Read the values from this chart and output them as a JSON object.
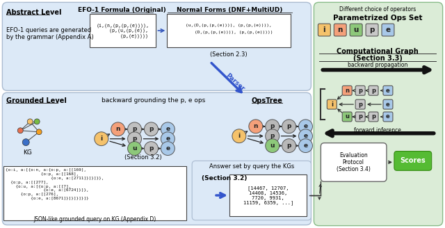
{
  "abstract_bg": "#dce9f7",
  "grounded_bg": "#dce9f7",
  "right_bg": "#dbecd7",
  "answer_bg": "#dce9f7",
  "abstract_label": "Abstract Level",
  "grounded_label": "Grounded Level",
  "efo1_title": "EFO-1 Formula (Original)",
  "efo1_text": "(i,(n,(p,(p,(e)))),\n   (p,(u,(p,(e)),\n       (p,(e)))))",
  "normal_title": "Normal Forms (DNF+MultiUD)",
  "normal_text": "(u,(D,(p,(p,(e)))), (p,(p,(e)))),\n    (D,(p,(p,(e)))), (p,(p,(e)))))",
  "section23": "(Section 2.3)",
  "section32": "(Section 3.2)",
  "grounding_text": "backward grounding the p, e ops",
  "opstree_label": "OpsTree",
  "kg_label": "KG",
  "param_ops_title": "Parametrized Ops Set",
  "back_prop_text": "backward propagation",
  "forward_inf_text": "forward inference",
  "answer_set_text": "Answer set by query the KGs",
  "answer_values": "[14467, 12707,\n14408, 14536,\n7720, 9931,\n11159, 6359, ...]",
  "eval_protocol_text": "Evaluation\nProtocol\n(Section 3.4)",
  "scores_text": "Scores",
  "json_label": "JSON-like grounded query on KG (Appendix D)",
  "diff_ops_text": "Different choice of operators",
  "appendix_a_text": "EFO-1 queries are generated\nby the grammar (Appendix A)",
  "node_colors": {
    "i": "#F5C26B",
    "n": "#F4A07A",
    "u": "#8DC87A",
    "p": "#C0C0C0",
    "e": "#A8C8E8"
  },
  "node_colors_sq": {
    "i": "#F5C26B",
    "n": "#F4A07A",
    "u": "#8DC87A",
    "p": "#C8C8C8",
    "e": "#A8C8E8"
  }
}
